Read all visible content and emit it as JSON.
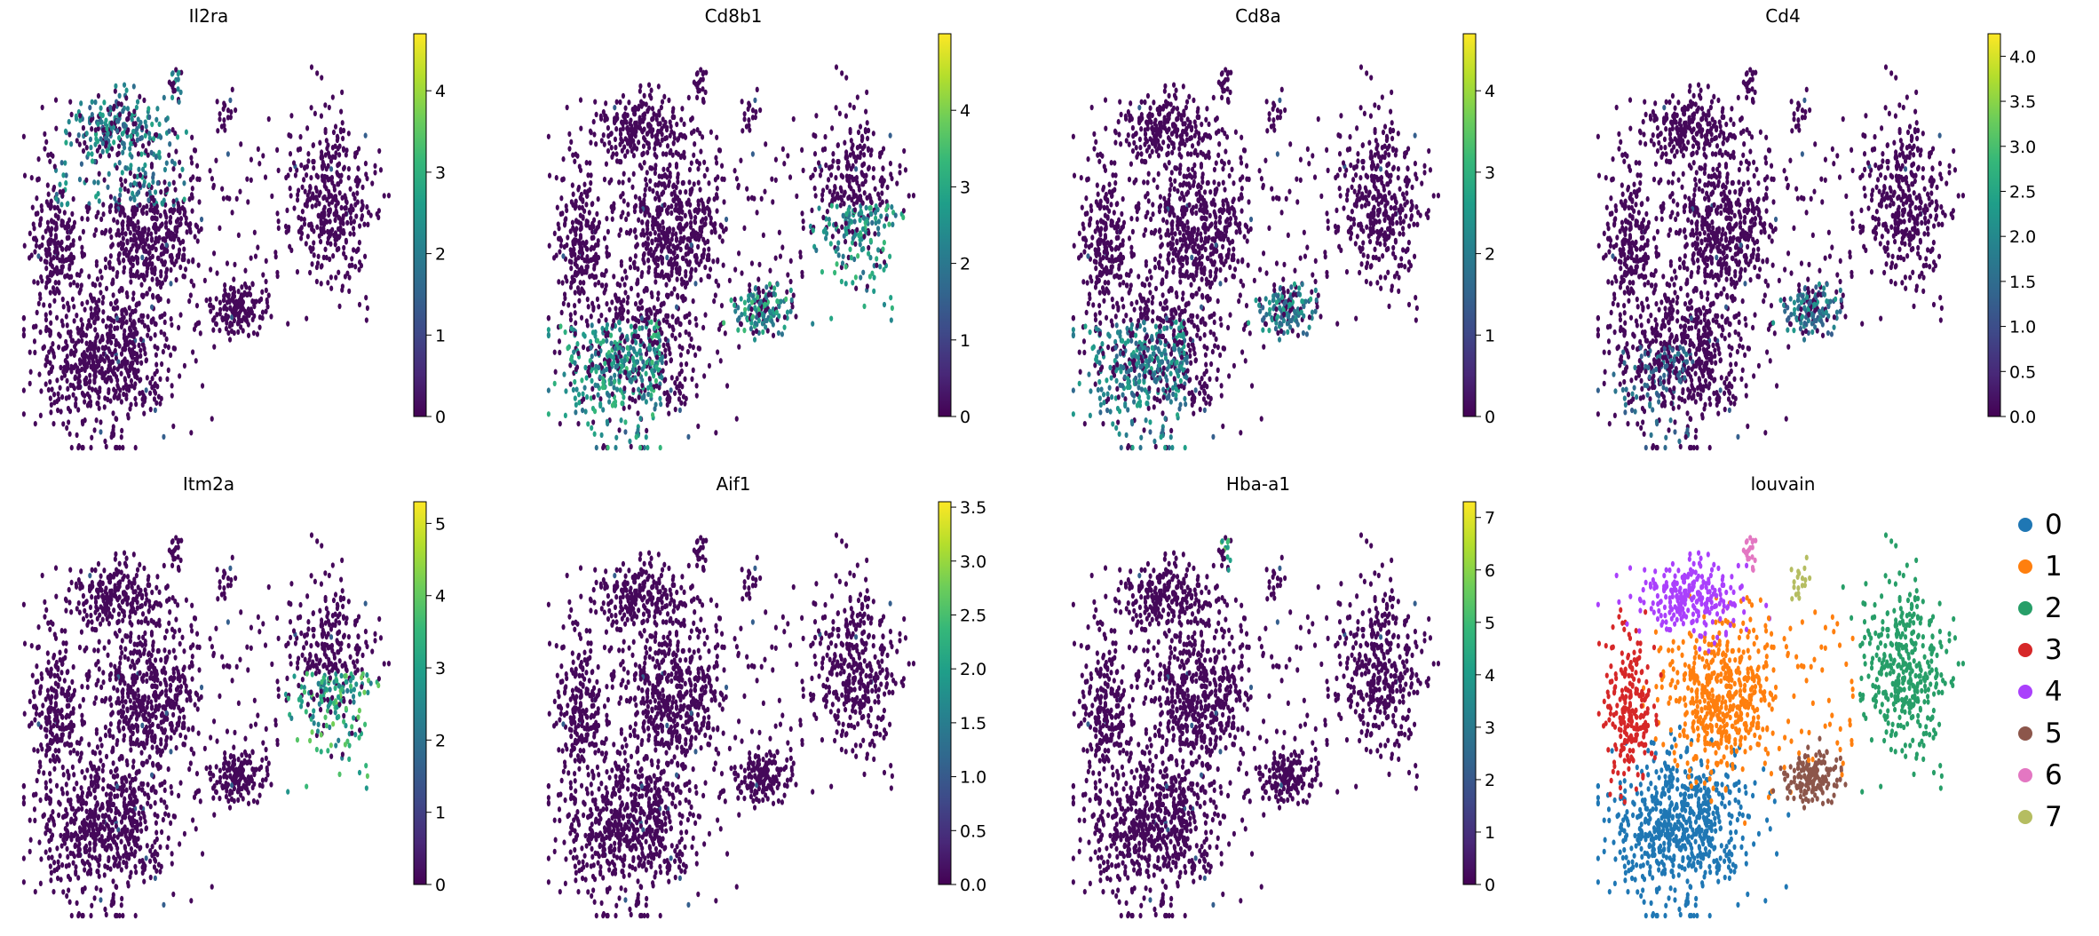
{
  "chart_data": [
    {
      "type": "scatter",
      "title": "Il2ra",
      "colorbar": {
        "vmin": 0,
        "vmax": 4.7,
        "ticks": [
          0,
          1,
          2,
          3,
          4
        ]
      },
      "high_regions": [
        "upper-center"
      ],
      "hi_level": 0.6
    },
    {
      "type": "scatter",
      "title": "Cd8b1",
      "colorbar": {
        "vmin": 0,
        "vmax": 5.0,
        "ticks": [
          0,
          1,
          2,
          3,
          4
        ]
      },
      "high_regions": [
        "lower-left",
        "lower-right-blob",
        "right-lobe-low"
      ],
      "hi_level": 0.7
    },
    {
      "type": "scatter",
      "title": "Cd8a",
      "colorbar": {
        "vmin": 0,
        "vmax": 4.7,
        "ticks": [
          0,
          1,
          2,
          3,
          4
        ]
      },
      "high_regions": [
        "lower-left",
        "lower-right-blob"
      ],
      "hi_level": 0.6
    },
    {
      "type": "scatter",
      "title": "Cd4",
      "colorbar": {
        "vmin": 0,
        "vmax": 4.25,
        "ticks": [
          "0.0",
          "0.5",
          "1.0",
          "1.5",
          "2.0",
          "2.5",
          "3.0",
          "3.5",
          "4.0"
        ]
      },
      "high_regions": [
        "lower-left-sparse",
        "lower-right-blob"
      ],
      "hi_level": 0.55
    },
    {
      "type": "scatter",
      "title": "Itm2a",
      "colorbar": {
        "vmin": 0,
        "vmax": 5.3,
        "ticks": [
          0,
          1,
          2,
          3,
          4,
          5
        ]
      },
      "high_regions": [
        "right-lobe-low"
      ],
      "hi_level": 0.8
    },
    {
      "type": "scatter",
      "title": "Aif1",
      "colorbar": {
        "vmin": 0,
        "vmax": 3.55,
        "ticks": [
          "0.0",
          "0.5",
          "1.0",
          "1.5",
          "2.0",
          "2.5",
          "3.0",
          "3.5"
        ]
      },
      "high_regions": [],
      "hi_level": 0.5
    },
    {
      "type": "scatter",
      "title": "Hba-a1",
      "colorbar": {
        "vmin": 0,
        "vmax": 7.3,
        "ticks": [
          0,
          1,
          2,
          3,
          4,
          5,
          6,
          7
        ]
      },
      "high_regions": [
        "top-tip"
      ],
      "hi_level": 0.8
    },
    {
      "type": "scatter",
      "title": "louvain",
      "categorical": true,
      "legend": [
        {
          "label": "0",
          "color": "#1f77b4"
        },
        {
          "label": "1",
          "color": "#ff7f0e"
        },
        {
          "label": "2",
          "color": "#279e68"
        },
        {
          "label": "3",
          "color": "#d62728"
        },
        {
          "label": "4",
          "color": "#aa40fc"
        },
        {
          "label": "5",
          "color": "#8c564b"
        },
        {
          "label": "6",
          "color": "#e377c2"
        },
        {
          "label": "7",
          "color": "#b5bd61"
        }
      ]
    }
  ]
}
